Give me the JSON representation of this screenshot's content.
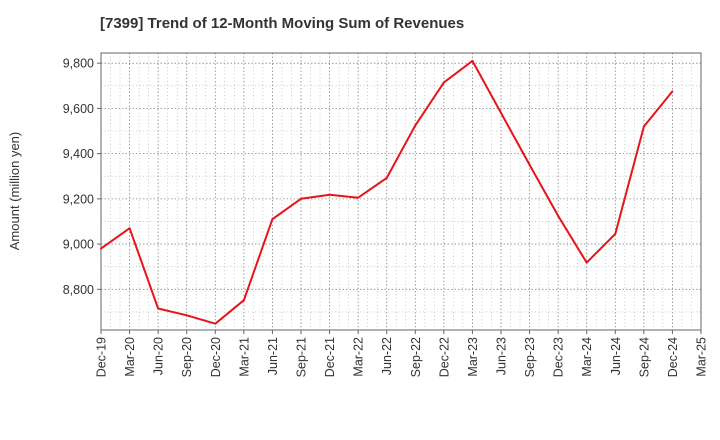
{
  "chart_data": {
    "type": "line",
    "title": "[7399]  Trend of 12-Month Moving Sum of Revenues",
    "ylabel": "Amount (million yen)",
    "xlabel": "",
    "x": [
      "Dec-19",
      "Mar-20",
      "Jun-20",
      "Sep-20",
      "Dec-20",
      "Mar-21",
      "Jun-21",
      "Sep-21",
      "Dec-21",
      "Mar-22",
      "Jun-22",
      "Sep-22",
      "Dec-22",
      "Mar-23",
      "Jun-23",
      "Sep-23",
      "Dec-23",
      "Mar-24",
      "Jun-24",
      "Sep-24",
      "Dec-24",
      "Mar-25"
    ],
    "series": [
      {
        "values": [
          8980,
          9070,
          8715,
          8685,
          8648,
          8752,
          9110,
          9200,
          9218,
          9205,
          9292,
          9525,
          9715,
          9810,
          9580,
          9350,
          9125,
          8918,
          9045,
          9520,
          9675,
          null
        ],
        "color": "#e8141b"
      }
    ],
    "ylim": [
      8620,
      9845
    ],
    "yticks": [
      8800,
      9000,
      9200,
      9400,
      9600,
      9800
    ],
    "ytick_labels": [
      "8,800",
      "9,000",
      "9,200",
      "9,400",
      "9,600",
      "9,800"
    ],
    "grid": true,
    "legend": "none"
  }
}
